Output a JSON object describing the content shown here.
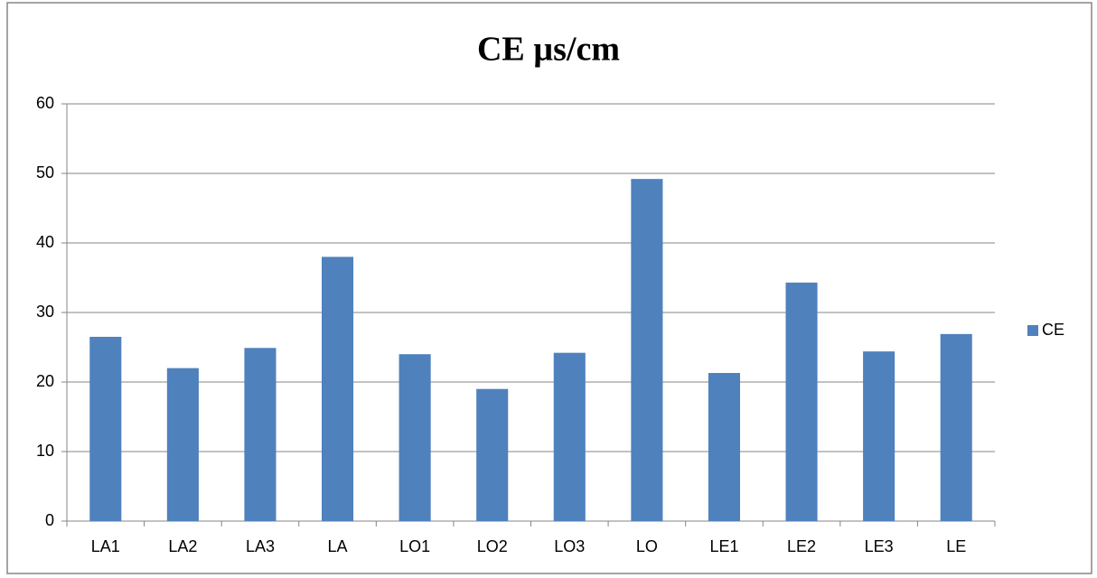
{
  "chart_data": {
    "type": "bar",
    "title": "CE µs/cm",
    "categories": [
      "LA1",
      "LA2",
      "LA3",
      "LA",
      "LO1",
      "LO2",
      "LO3",
      "LO",
      "LE1",
      "LE2",
      "LE3",
      "LE"
    ],
    "series": [
      {
        "name": "CE",
        "color": "#4f81bd",
        "values": [
          26.5,
          22,
          24.9,
          38,
          24,
          19,
          24.2,
          49.2,
          21.3,
          34.3,
          24.4,
          26.9
        ]
      }
    ],
    "ylim": [
      0,
      60
    ],
    "yticks": [
      0,
      10,
      20,
      30,
      40,
      50,
      60
    ],
    "grid": true,
    "legend": "right"
  }
}
